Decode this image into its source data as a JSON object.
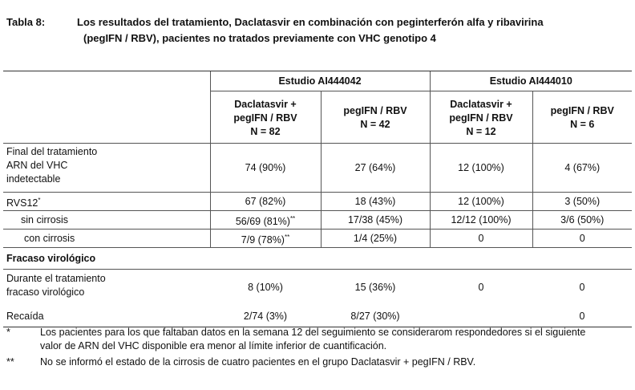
{
  "caption": {
    "label": "Tabla 8:",
    "line1": "Los resultados del tratamiento, Daclatasvir en combinación con peginterferón alfa y ribavirina",
    "line2": "(pegIFN / RBV),  pacientes no tratados previamente con VHC genotipo 4"
  },
  "studies": [
    "Estudio AI444042",
    "Estudio AI444010"
  ],
  "arms": [
    {
      "l1": "Daclatasvir +",
      "l2": "pegIFN / RBV",
      "l3": "N = 82"
    },
    {
      "l1": "pegIFN / RBV",
      "l2": "N = 42"
    },
    {
      "l1": "Daclatasvir +",
      "l2": "pegIFN / RBV",
      "l3": "N = 12"
    },
    {
      "l1": "pegIFN / RBV",
      "l2": "N = 6"
    }
  ],
  "rows": {
    "eot": {
      "l1": "Final del tratamiento",
      "l2": "ARN del VHC",
      "l3": "indetectable",
      "v": [
        "74 (90%)",
        "27 (64%)",
        "12 (100%)",
        "4 (67%)"
      ]
    },
    "svr": {
      "label": "RVS12",
      "mark": "*",
      "v": [
        "67 (82%)",
        "18 (43%)",
        "12 (100%)",
        "3 (50%)"
      ]
    },
    "nocirr": {
      "label": "sin cirrosis",
      "v": [
        "56/69 (81%)",
        "17/38 (45%)",
        "12/12 (100%)",
        "3/6 (50%)"
      ],
      "mark": "**"
    },
    "cirr": {
      "label": "con cirrosis",
      "v": [
        "7/9 (78%)",
        "1/4 (25%)",
        "0",
        "0"
      ],
      "mark": "**"
    },
    "fail": {
      "label": "Fracaso virológico"
    },
    "during": {
      "l1": "Durante el tratamiento",
      "l2": "fracaso virológico",
      "v": [
        "8 (10%)",
        "15 (36%)",
        "0",
        "0"
      ]
    },
    "relapse": {
      "label": "Recaída",
      "v": [
        "2/74 (3%)",
        "8/27 (30%)",
        "",
        "0"
      ]
    }
  },
  "footnotes": [
    {
      "mark": "*",
      "l1": "Los pacientes para los que faltaban datos en la semana 12 del seguimiento se considerarom respondedores si el siguiente",
      "l2": "valor de ARN del VHC disponible era menor al límite inferior de cuantificación."
    },
    {
      "mark": "**",
      "l1": "No se informó el estado de la cirrosis  de cuatro pacientes en el grupo Daclatasvir + pegIFN / RBV."
    }
  ]
}
